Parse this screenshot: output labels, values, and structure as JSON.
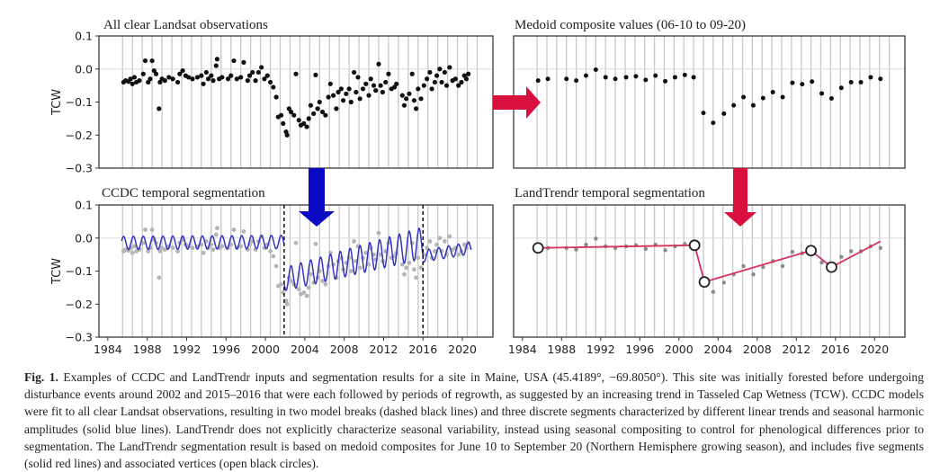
{
  "chart_data": [
    {
      "id": "observations",
      "type": "scatter",
      "title": "All clear Landsat observations",
      "ylabel": "TCW",
      "xlabel": "",
      "ylim": [
        -0.3,
        0.1
      ],
      "xlim": [
        1983.1,
        2023.1
      ],
      "yticks": [
        "0.1",
        "0.0",
        "−0.1",
        "−0.2",
        "−0.3"
      ],
      "ytick_values": [
        0.1,
        0.0,
        -0.1,
        -0.2,
        -0.3
      ],
      "grid": "vertical yearly",
      "point_color": "#111111",
      "points": [
        [
          1985.6,
          -0.04
        ],
        [
          1985.8,
          -0.035
        ],
        [
          1986.1,
          -0.038
        ],
        [
          1986.3,
          -0.03
        ],
        [
          1986.5,
          -0.045
        ],
        [
          1986.7,
          -0.025
        ],
        [
          1986.9,
          -0.04
        ],
        [
          1987.2,
          -0.035
        ],
        [
          1987.6,
          -0.015
        ],
        [
          1987.8,
          0.025
        ],
        [
          1988.1,
          -0.04
        ],
        [
          1988.3,
          -0.03
        ],
        [
          1988.5,
          0.025
        ],
        [
          1988.7,
          -0.005
        ],
        [
          1988.9,
          -0.015
        ],
        [
          1989.2,
          -0.12
        ],
        [
          1989.3,
          -0.04
        ],
        [
          1989.5,
          -0.03
        ],
        [
          1989.8,
          -0.035
        ],
        [
          1990.2,
          -0.025
        ],
        [
          1990.6,
          -0.03
        ],
        [
          1991.1,
          -0.04
        ],
        [
          1991.3,
          -0.015
        ],
        [
          1991.6,
          -0.005
        ],
        [
          1991.9,
          -0.02
        ],
        [
          1992.2,
          -0.025
        ],
        [
          1992.6,
          -0.03
        ],
        [
          1993.1,
          -0.025
        ],
        [
          1993.5,
          -0.02
        ],
        [
          1993.7,
          -0.045
        ],
        [
          1994.0,
          -0.01
        ],
        [
          1994.2,
          -0.03
        ],
        [
          1994.5,
          -0.02
        ],
        [
          1994.7,
          -0.035
        ],
        [
          1995.0,
          0.01
        ],
        [
          1995.1,
          0.03
        ],
        [
          1995.3,
          -0.03
        ],
        [
          1995.6,
          -0.025
        ],
        [
          1996.2,
          -0.03
        ],
        [
          1996.5,
          -0.02
        ],
        [
          1996.8,
          0.025
        ],
        [
          1997.1,
          -0.03
        ],
        [
          1997.5,
          -0.025
        ],
        [
          1997.8,
          0.02
        ],
        [
          1998.2,
          -0.035
        ],
        [
          1998.4,
          -0.02
        ],
        [
          1998.7,
          -0.01
        ],
        [
          1999.0,
          -0.035
        ],
        [
          1999.3,
          -0.01
        ],
        [
          1999.6,
          0.005
        ],
        [
          1999.9,
          -0.03
        ],
        [
          2000.2,
          -0.02
        ],
        [
          2000.5,
          -0.04
        ],
        [
          2000.8,
          -0.055
        ],
        [
          2001.1,
          -0.085
        ],
        [
          2001.3,
          -0.145
        ],
        [
          2001.6,
          -0.14
        ],
        [
          2001.8,
          -0.165
        ],
        [
          2002.1,
          -0.19
        ],
        [
          2002.2,
          -0.2
        ],
        [
          2002.4,
          -0.12
        ],
        [
          2002.6,
          -0.13
        ],
        [
          2002.9,
          -0.14
        ],
        [
          2003.1,
          -0.015
        ],
        [
          2003.4,
          -0.155
        ],
        [
          2003.6,
          -0.17
        ],
        [
          2003.9,
          -0.165
        ],
        [
          2004.2,
          -0.175
        ],
        [
          2004.4,
          -0.15
        ],
        [
          2004.6,
          -0.11
        ],
        [
          2004.9,
          -0.135
        ],
        [
          2005.1,
          -0.018
        ],
        [
          2005.3,
          -0.12
        ],
        [
          2005.5,
          -0.1
        ],
        [
          2005.8,
          -0.13
        ],
        [
          2006.1,
          -0.14
        ],
        [
          2006.4,
          -0.085
        ],
        [
          2006.6,
          -0.045
        ],
        [
          2006.9,
          -0.08
        ],
        [
          2007.2,
          -0.12
        ],
        [
          2007.4,
          -0.07
        ],
        [
          2007.7,
          -0.06
        ],
        [
          2007.9,
          -0.095
        ],
        [
          2008.2,
          -0.075
        ],
        [
          2008.5,
          -0.06
        ],
        [
          2008.7,
          -0.1
        ],
        [
          2009.0,
          -0.01
        ],
        [
          2009.2,
          -0.07
        ],
        [
          2009.4,
          -0.025
        ],
        [
          2009.6,
          -0.09
        ],
        [
          2009.9,
          -0.06
        ],
        [
          2010.2,
          -0.045
        ],
        [
          2010.5,
          -0.08
        ],
        [
          2010.7,
          -0.03
        ],
        [
          2011.0,
          -0.05
        ],
        [
          2011.2,
          -0.065
        ],
        [
          2011.5,
          0.015
        ],
        [
          2011.7,
          -0.05
        ],
        [
          2011.9,
          -0.07
        ],
        [
          2012.2,
          -0.04
        ],
        [
          2012.5,
          -0.015
        ],
        [
          2012.8,
          -0.06
        ],
        [
          2013.1,
          -0.055
        ],
        [
          2013.3,
          -0.045
        ],
        [
          2013.9,
          -0.08
        ],
        [
          2014.1,
          -0.11
        ],
        [
          2014.3,
          -0.09
        ],
        [
          2014.6,
          -0.075
        ],
        [
          2014.9,
          -0.015
        ],
        [
          2015.1,
          -0.095
        ],
        [
          2015.3,
          -0.12
        ],
        [
          2015.5,
          -0.06
        ],
        [
          2015.8,
          -0.09
        ],
        [
          2016.1,
          -0.05
        ],
        [
          2016.4,
          -0.03
        ],
        [
          2016.7,
          -0.01
        ],
        [
          2016.9,
          -0.06
        ],
        [
          2017.2,
          -0.04
        ],
        [
          2017.4,
          -0.02
        ],
        [
          2017.7,
          0.0
        ],
        [
          2017.9,
          -0.04
        ],
        [
          2018.2,
          -0.01
        ],
        [
          2018.4,
          -0.05
        ],
        [
          2018.7,
          0.005
        ],
        [
          2019.0,
          -0.035
        ],
        [
          2019.3,
          -0.03
        ],
        [
          2019.6,
          -0.05
        ],
        [
          2019.9,
          -0.04
        ],
        [
          2020.2,
          -0.02
        ],
        [
          2020.4,
          -0.03
        ],
        [
          2020.6,
          -0.015
        ]
      ]
    },
    {
      "id": "medoid",
      "type": "scatter",
      "title": "Medoid composite values (06-10 to 09-20)",
      "ylim": [
        -0.3,
        0.1
      ],
      "xlim": [
        1983.1,
        2023.1
      ],
      "grid": "vertical yearly",
      "point_color": "#111111",
      "x": [
        1985.6,
        1986.6,
        1988.5,
        1989.5,
        1990.5,
        1991.5,
        1992.5,
        1993.5,
        1994.6,
        1995.6,
        1996.6,
        1997.6,
        1998.6,
        1999.6,
        2000.6,
        2001.5,
        2002.5,
        2003.5,
        2004.6,
        2005.6,
        2006.6,
        2007.6,
        2008.6,
        2009.6,
        2010.6,
        2011.6,
        2012.6,
        2013.6,
        2014.6,
        2015.6,
        2016.6,
        2017.6,
        2018.6,
        2019.6,
        2020.6
      ],
      "y": [
        -0.035,
        -0.03,
        -0.03,
        -0.035,
        -0.02,
        -0.002,
        -0.025,
        -0.03,
        -0.025,
        -0.022,
        -0.033,
        -0.02,
        -0.037,
        -0.025,
        -0.018,
        -0.025,
        -0.133,
        -0.163,
        -0.135,
        -0.11,
        -0.085,
        -0.11,
        -0.088,
        -0.07,
        -0.085,
        -0.042,
        -0.046,
        -0.038,
        -0.074,
        -0.089,
        -0.057,
        -0.04,
        -0.04,
        -0.025,
        -0.03
      ]
    },
    {
      "id": "ccdc",
      "type": "line",
      "title": "CCDC temporal segmentation",
      "ylabel": "TCW",
      "ylim": [
        -0.3,
        0.1
      ],
      "xlim": [
        1983.1,
        2023.1
      ],
      "xticks": [
        "1984",
        "1988",
        "1992",
        "1996",
        "2000",
        "2004",
        "2008",
        "2012",
        "2016",
        "2020"
      ],
      "xtick_values": [
        1984,
        1988,
        1992,
        1996,
        2000,
        2004,
        2008,
        2012,
        2016,
        2020
      ],
      "yticks": [
        "0.1",
        "0.0",
        "−0.1",
        "−0.2",
        "−0.3"
      ],
      "ytick_values": [
        0.1,
        0.0,
        -0.1,
        -0.2,
        -0.3
      ],
      "grid": "vertical yearly",
      "background_points_color": "#b5b5b5",
      "break_lines": [
        2001.9,
        2016.0
      ],
      "break_line_style": "dashed black",
      "series": [
        {
          "name": "segment-1",
          "color": "#3535c0",
          "start": 1985.4,
          "end": 2001.9,
          "trend_start": -0.015,
          "trend_end": -0.012,
          "amplitude": 0.02
        },
        {
          "name": "segment-2",
          "color": "#3535c0",
          "start": 2001.9,
          "end": 2016.0,
          "trend_start": -0.125,
          "trend_end": -0.015,
          "amplitude_start": 0.035,
          "amplitude_end": 0.048
        },
        {
          "name": "segment-3",
          "color": "#3535c0",
          "start": 2016.0,
          "end": 2020.9,
          "trend_start": -0.055,
          "trend_end": -0.03,
          "amplitude": 0.018
        }
      ]
    },
    {
      "id": "landtrendr",
      "type": "line",
      "title": "LandTrendr temporal segmentation",
      "ylim": [
        -0.3,
        0.1
      ],
      "xlim": [
        1983.1,
        2023.1
      ],
      "xticks": [
        "1984",
        "1988",
        "1992",
        "1996",
        "2000",
        "2004",
        "2008",
        "2012",
        "2016",
        "2020"
      ],
      "xtick_values": [
        1984,
        1988,
        1992,
        1996,
        2000,
        2004,
        2008,
        2012,
        2016,
        2020
      ],
      "grid": "vertical yearly",
      "line_color": "#d6345e",
      "background_points_color": "#8a8a8a",
      "vertices": [
        [
          1985.6,
          -0.03
        ],
        [
          2001.6,
          -0.022
        ],
        [
          2002.6,
          -0.133
        ],
        [
          2013.5,
          -0.038
        ],
        [
          2015.6,
          -0.088
        ]
      ],
      "line": [
        [
          1985.6,
          -0.03
        ],
        [
          2001.6,
          -0.022
        ],
        [
          2002.6,
          -0.133
        ],
        [
          2013.5,
          -0.038
        ],
        [
          2015.6,
          -0.088
        ],
        [
          2020.6,
          -0.01
        ]
      ]
    }
  ],
  "arrows": {
    "right_arrow_color": "#d90f3d",
    "down_left_arrow_color": "#0a0ac4",
    "down_right_arrow_color": "#d90f3d"
  },
  "caption": {
    "label": "Fig. 1.",
    "text": "Examples of CCDC and LandTrendr inputs and segmentation results for a site in Maine, USA (45.4189°, −69.8050°). This site was initially forested before undergoing disturbance events around 2002 and 2015–2016 that were each followed by periods of regrowth, as suggested by an increasing trend in Tasseled Cap Wetness (TCW). CCDC models were fit to all clear Landsat observations, resulting in two model breaks (dashed black lines) and three discrete segments characterized by different linear trends and seasonal harmonic amplitudes (solid blue lines). LandTrendr does not explicitly characterize seasonal variability, instead using seasonal compositing to control for phenological differences prior to segmentation. The LandTrendr segmentation result is based on medoid composites for June 10 to September 20 (Northern Hemisphere growing season), and includes five segments (solid red lines) and associated vertices (open black circles)."
  }
}
